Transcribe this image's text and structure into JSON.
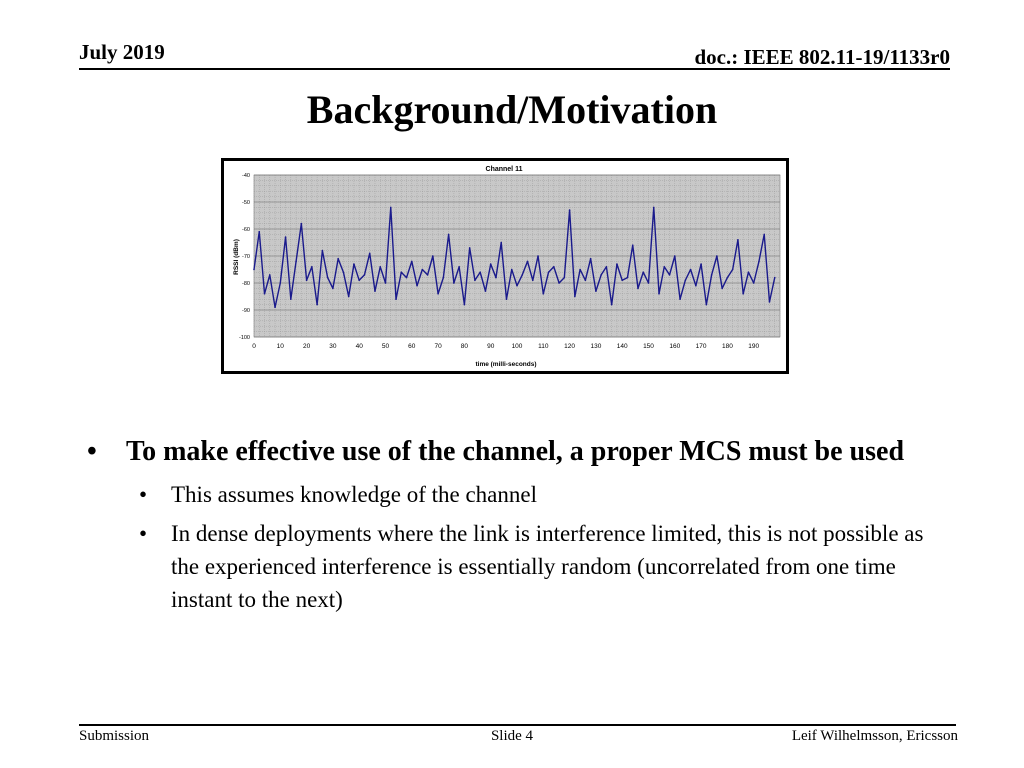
{
  "header": {
    "date": "July 2019",
    "doc_id": "doc.: IEEE 802.11-19/1133r0"
  },
  "title": "Background/Motivation",
  "chart_data": {
    "type": "line",
    "title": "Channel 11",
    "xlabel": "time (milli-seconds)",
    "ylabel": "RSSI (dBm)",
    "xlim": [
      0,
      200
    ],
    "ylim": [
      -100,
      -40
    ],
    "x_ticks": [
      0,
      10,
      20,
      30,
      40,
      50,
      60,
      70,
      80,
      90,
      100,
      110,
      120,
      130,
      140,
      150,
      160,
      170,
      180,
      190
    ],
    "y_ticks": [
      -40,
      -50,
      -60,
      -70,
      -80,
      -90,
      -100
    ],
    "grid": true,
    "series": [
      {
        "name": "RSSI",
        "color": "#1a1a8c",
        "x": [
          0,
          2,
          4,
          6,
          8,
          10,
          12,
          14,
          16,
          18,
          20,
          22,
          24,
          26,
          28,
          30,
          32,
          34,
          36,
          38,
          40,
          42,
          44,
          46,
          48,
          50,
          52,
          54,
          56,
          58,
          60,
          62,
          64,
          66,
          68,
          70,
          72,
          74,
          76,
          78,
          80,
          82,
          84,
          86,
          88,
          90,
          92,
          94,
          96,
          98,
          100,
          102,
          104,
          106,
          108,
          110,
          112,
          114,
          116,
          118,
          120,
          122,
          124,
          126,
          128,
          130,
          132,
          134,
          136,
          138,
          140,
          142,
          144,
          146,
          148,
          150,
          152,
          154,
          156,
          158,
          160,
          162,
          164,
          166,
          168,
          170,
          172,
          174,
          176,
          178,
          180,
          182,
          184,
          186,
          188,
          190,
          192,
          194,
          196,
          198
        ],
        "values": [
          -75,
          -61,
          -84,
          -77,
          -89,
          -80,
          -63,
          -86,
          -72,
          -58,
          -79,
          -74,
          -88,
          -68,
          -78,
          -82,
          -71,
          -76,
          -85,
          -73,
          -79,
          -77,
          -69,
          -83,
          -74,
          -80,
          -52,
          -86,
          -76,
          -78,
          -72,
          -81,
          -75,
          -77,
          -70,
          -84,
          -78,
          -62,
          -80,
          -74,
          -88,
          -67,
          -79,
          -76,
          -83,
          -73,
          -78,
          -65,
          -86,
          -75,
          -81,
          -77,
          -72,
          -79,
          -70,
          -84,
          -76,
          -74,
          -80,
          -78,
          -53,
          -85,
          -75,
          -79,
          -71,
          -83,
          -77,
          -74,
          -88,
          -73,
          -79,
          -78,
          -66,
          -82,
          -76,
          -80,
          -52,
          -84,
          -74,
          -77,
          -70,
          -86,
          -79,
          -75,
          -81,
          -73,
          -88,
          -77,
          -70,
          -82,
          -78,
          -75,
          -64,
          -84,
          -76,
          -80,
          -72,
          -62,
          -87,
          -78
        ]
      }
    ]
  },
  "bullets": {
    "main": "To make effective use of the channel, a proper MCS must be used",
    "subs": [
      "This assumes knowledge of the channel",
      "In dense deployments where the link is interference limited, this is not possible as the experienced interference is essentially random (uncorrelated from one time instant to the next)"
    ],
    "marker": "•"
  },
  "footer": {
    "left": "Submission",
    "center": "Slide 4",
    "right": "Leif Wilhelmsson, Ericsson"
  }
}
